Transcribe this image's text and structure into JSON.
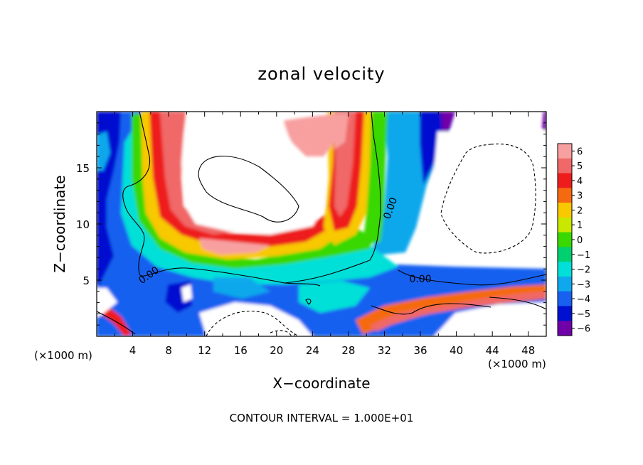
{
  "chart_data": {
    "type": "heatmap",
    "title": "zonal velocity",
    "xlabel": "X−coordinate",
    "ylabel": "Z−coordinate",
    "x_unit_left": "(×1000 m)",
    "x_unit_right": "(×1000 m)",
    "footer": "CONTOUR INTERVAL = 1.000E+01",
    "xlim": [
      0,
      50
    ],
    "ylim": [
      0,
      20
    ],
    "x_ticks": [
      4,
      8,
      12,
      16,
      20,
      24,
      28,
      32,
      36,
      40,
      44,
      48
    ],
    "y_ticks": [
      5,
      10,
      15
    ],
    "colorbar": {
      "levels": [
        6,
        5,
        4,
        3,
        2,
        1,
        0,
        -1,
        -2,
        -3,
        -4,
        -5,
        -6
      ],
      "labels": [
        "6",
        "5",
        "4",
        "3",
        "2",
        "1",
        "0",
        "−1",
        "−2",
        "−3",
        "−4",
        "−5",
        "−6"
      ],
      "colors": [
        "#f8a0a0",
        "#f06868",
        "#ee1c1c",
        "#f56a10",
        "#f8c800",
        "#c8e800",
        "#38d800",
        "#00d070",
        "#00e0d8",
        "#10a8ec",
        "#1860f0",
        "#0010d0",
        "#7000a8"
      ]
    },
    "contour_labels": [
      {
        "text": "0.00",
        "x": 33.0,
        "y": 11.3
      },
      {
        "text": "0.00",
        "x": 6.0,
        "y": 5.2
      },
      {
        "text": "0.00",
        "x": 36.0,
        "y": 4.8
      }
    ]
  }
}
